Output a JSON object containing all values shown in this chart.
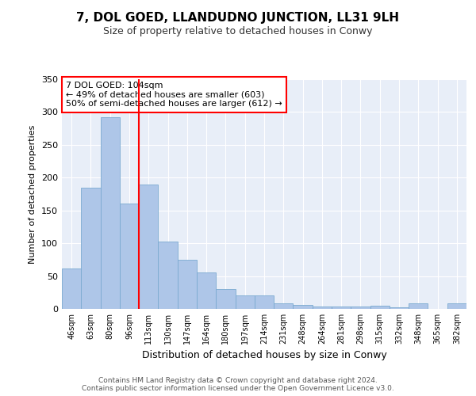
{
  "title": "7, DOL GOED, LLANDUDNO JUNCTION, LL31 9LH",
  "subtitle": "Size of property relative to detached houses in Conwy",
  "xlabel": "Distribution of detached houses by size in Conwy",
  "ylabel": "Number of detached properties",
  "categories": [
    "46sqm",
    "63sqm",
    "80sqm",
    "96sqm",
    "113sqm",
    "130sqm",
    "147sqm",
    "164sqm",
    "180sqm",
    "197sqm",
    "214sqm",
    "231sqm",
    "248sqm",
    "264sqm",
    "281sqm",
    "298sqm",
    "315sqm",
    "332sqm",
    "348sqm",
    "365sqm",
    "382sqm"
  ],
  "values": [
    62,
    185,
    292,
    161,
    189,
    103,
    75,
    55,
    30,
    20,
    21,
    9,
    6,
    4,
    4,
    4,
    5,
    2,
    9,
    0,
    9
  ],
  "bar_color": "#aec6e8",
  "bar_edge_color": "#7aaad0",
  "vline_x": 3.5,
  "vline_color": "red",
  "annotation_text": "7 DOL GOED: 104sqm\n← 49% of detached houses are smaller (603)\n50% of semi-detached houses are larger (612) →",
  "annotation_box_color": "white",
  "annotation_box_edge_color": "red",
  "ylim": [
    0,
    350
  ],
  "yticks": [
    0,
    50,
    100,
    150,
    200,
    250,
    300,
    350
  ],
  "bg_color": "#e8eef8",
  "plot_bg_color": "#dce6f5",
  "title_fontsize": 11,
  "subtitle_fontsize": 9,
  "footer1": "Contains HM Land Registry data © Crown copyright and database right 2024.",
  "footer2": "Contains public sector information licensed under the Open Government Licence v3.0."
}
